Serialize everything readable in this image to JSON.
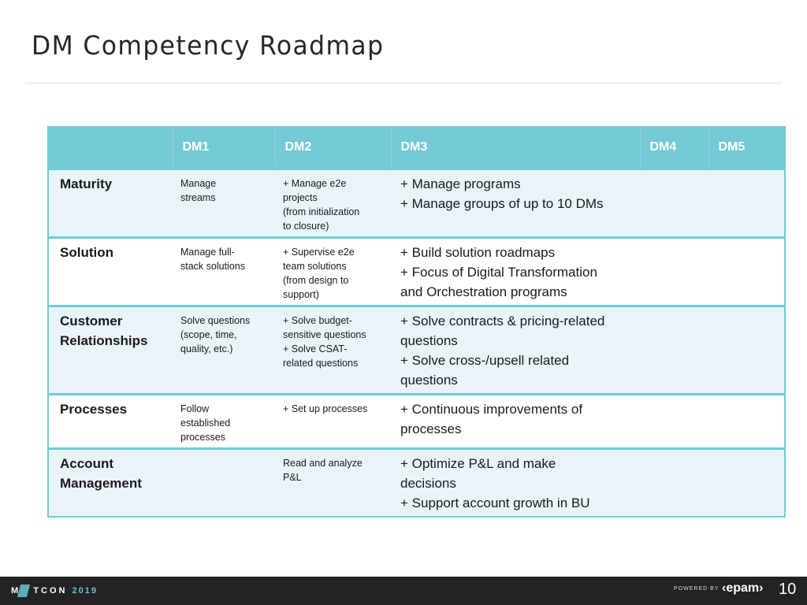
{
  "title": "DM Competency Roadmap",
  "table": {
    "headers": [
      "",
      "DM1",
      "DM2",
      "DM3",
      "DM4",
      "DM5"
    ],
    "rows": [
      {
        "label": "Maturity",
        "dm1": [
          "Manage",
          "streams"
        ],
        "dm2": [
          "+ Manage e2e",
          "projects",
          "(from initialization",
          "to closure)"
        ],
        "dm3": [
          "+ Manage programs",
          "+ Manage groups of up to 10 DMs"
        ]
      },
      {
        "label": "Solution",
        "dm1": [
          "Manage full-",
          "stack solutions"
        ],
        "dm2": [
          "+ Supervise e2e",
          "team solutions",
          "(from design to",
          "support)"
        ],
        "dm3": [
          "+ Build solution roadmaps",
          "+ Focus of Digital Transformation",
          "and Orchestration programs"
        ]
      },
      {
        "label": "Customer Relationships",
        "dm1": [
          "Solve questions",
          "(scope, time,",
          "quality, etc.)"
        ],
        "dm2": [
          "+ Solve budget-",
          "sensitive questions",
          "+ Solve CSAT-",
          "related questions"
        ],
        "dm3": [
          "+ Solve contracts & pricing-related",
          "questions",
          "+ Solve cross-/upsell related",
          "questions"
        ]
      },
      {
        "label": "Processes",
        "dm1": [
          "Follow",
          "established",
          "processes"
        ],
        "dm2": [
          "+ Set up processes"
        ],
        "dm3": [
          "+ Continuous improvements of",
          "processes"
        ]
      },
      {
        "label": "Account Management",
        "dm1": [],
        "dm2": [
          "Read and analyze",
          "P&L"
        ],
        "dm3": [
          "+ Optimize P&L and make",
          "decisions",
          "+ Support account growth in BU"
        ]
      }
    ]
  },
  "footer": {
    "logo_text": "MITCON 2019",
    "logo_left": "M",
    "logo_mid": "TCON",
    "logo_year": "2019",
    "powered_by": "POWERED BY",
    "brand": "‹epam›",
    "page_number": "10"
  },
  "colors": {
    "header": "#74cad6",
    "row_alt": "#e9f4f8",
    "footer": "#232323"
  }
}
